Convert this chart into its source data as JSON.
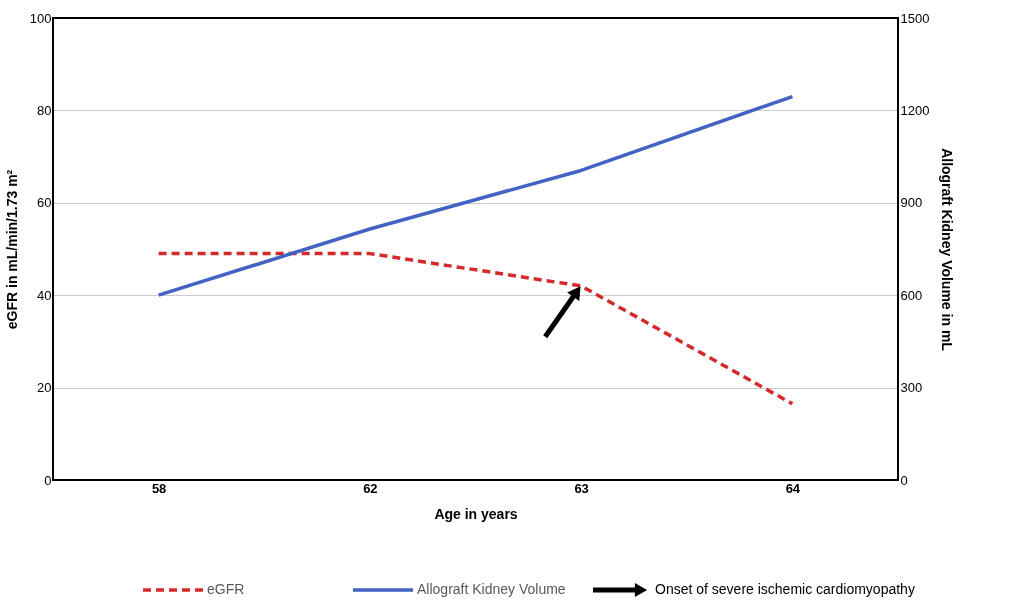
{
  "chart_data": {
    "type": "line",
    "categories": [
      "58",
      "62",
      "63",
      "64"
    ],
    "xlabel": "Age in years",
    "ylabel": "eGFR in mL/min/1.73 m²",
    "y2label": "Allograft Kidney Volume in mL",
    "ylim": [
      0,
      100
    ],
    "yticks": [
      0,
      20,
      40,
      60,
      80,
      100
    ],
    "y2lim": [
      0,
      1500
    ],
    "y2ticks": [
      0,
      300,
      600,
      900,
      1200,
      1500
    ],
    "grid": "y",
    "legend": "bottom",
    "marker": "none",
    "series": [
      {
        "name": "eGFR",
        "color": "#d42a2a",
        "values": [
          49,
          49,
          42,
          16.5
        ],
        "line_style": "dashed"
      },
      {
        "name": "Allograft Kidney Volume",
        "color": "#4263c4",
        "values": [
          600,
          815,
          1005,
          1245
        ],
        "axis": "y2",
        "line_style": "solid"
      }
    ],
    "annotations": [
      "Onset of severe ischemic cardiomyopathy"
    ]
  }
}
